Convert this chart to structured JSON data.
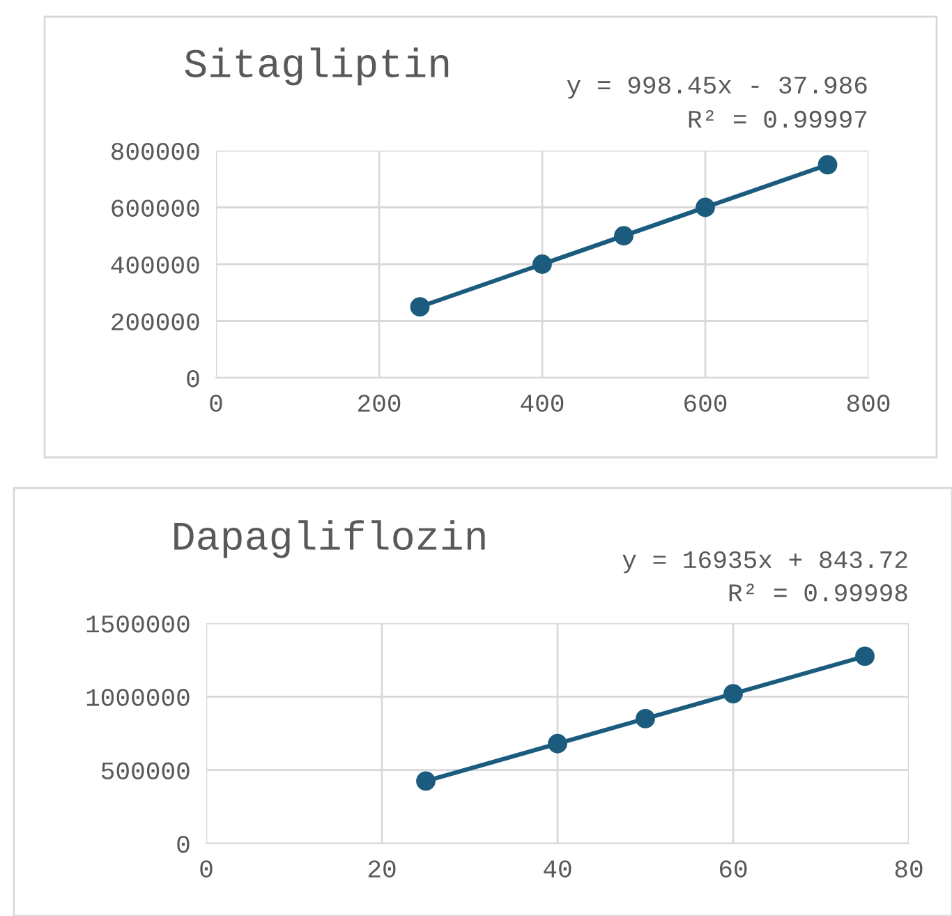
{
  "chart_data": [
    {
      "type": "line",
      "title": "Sitagliptin",
      "x": [
        250,
        400,
        500,
        600,
        750
      ],
      "series": [
        {
          "color": "#1b5c7e",
          "values": [
            250000,
            400000,
            500000,
            600000,
            750000
          ]
        }
      ],
      "xlim": [
        0,
        800
      ],
      "xticks": [
        0,
        200,
        400,
        600,
        800
      ],
      "ylim": [
        0,
        800000
      ],
      "yticks": [
        0,
        200000,
        400000,
        600000,
        800000
      ],
      "grid": true,
      "marker": "circle",
      "line_style": "solid",
      "annotations": [
        "y = 998.45x - 37.986",
        "R² = 0.99997"
      ]
    },
    {
      "type": "line",
      "title": "Dapagliflozin",
      "x": [
        25,
        40,
        50,
        60,
        75
      ],
      "series": [
        {
          "color": "#1b5c7e",
          "values": [
            425000,
            680000,
            850000,
            1020000,
            1275000
          ]
        }
      ],
      "xlim": [
        0,
        80
      ],
      "xticks": [
        0,
        20,
        40,
        60,
        80
      ],
      "ylim": [
        0,
        1500000
      ],
      "yticks": [
        0,
        500000,
        1000000,
        1500000
      ],
      "grid": true,
      "marker": "circle",
      "line_style": "solid",
      "annotations": [
        "y = 16935x + 843.72",
        "R² = 0.99998"
      ]
    }
  ]
}
